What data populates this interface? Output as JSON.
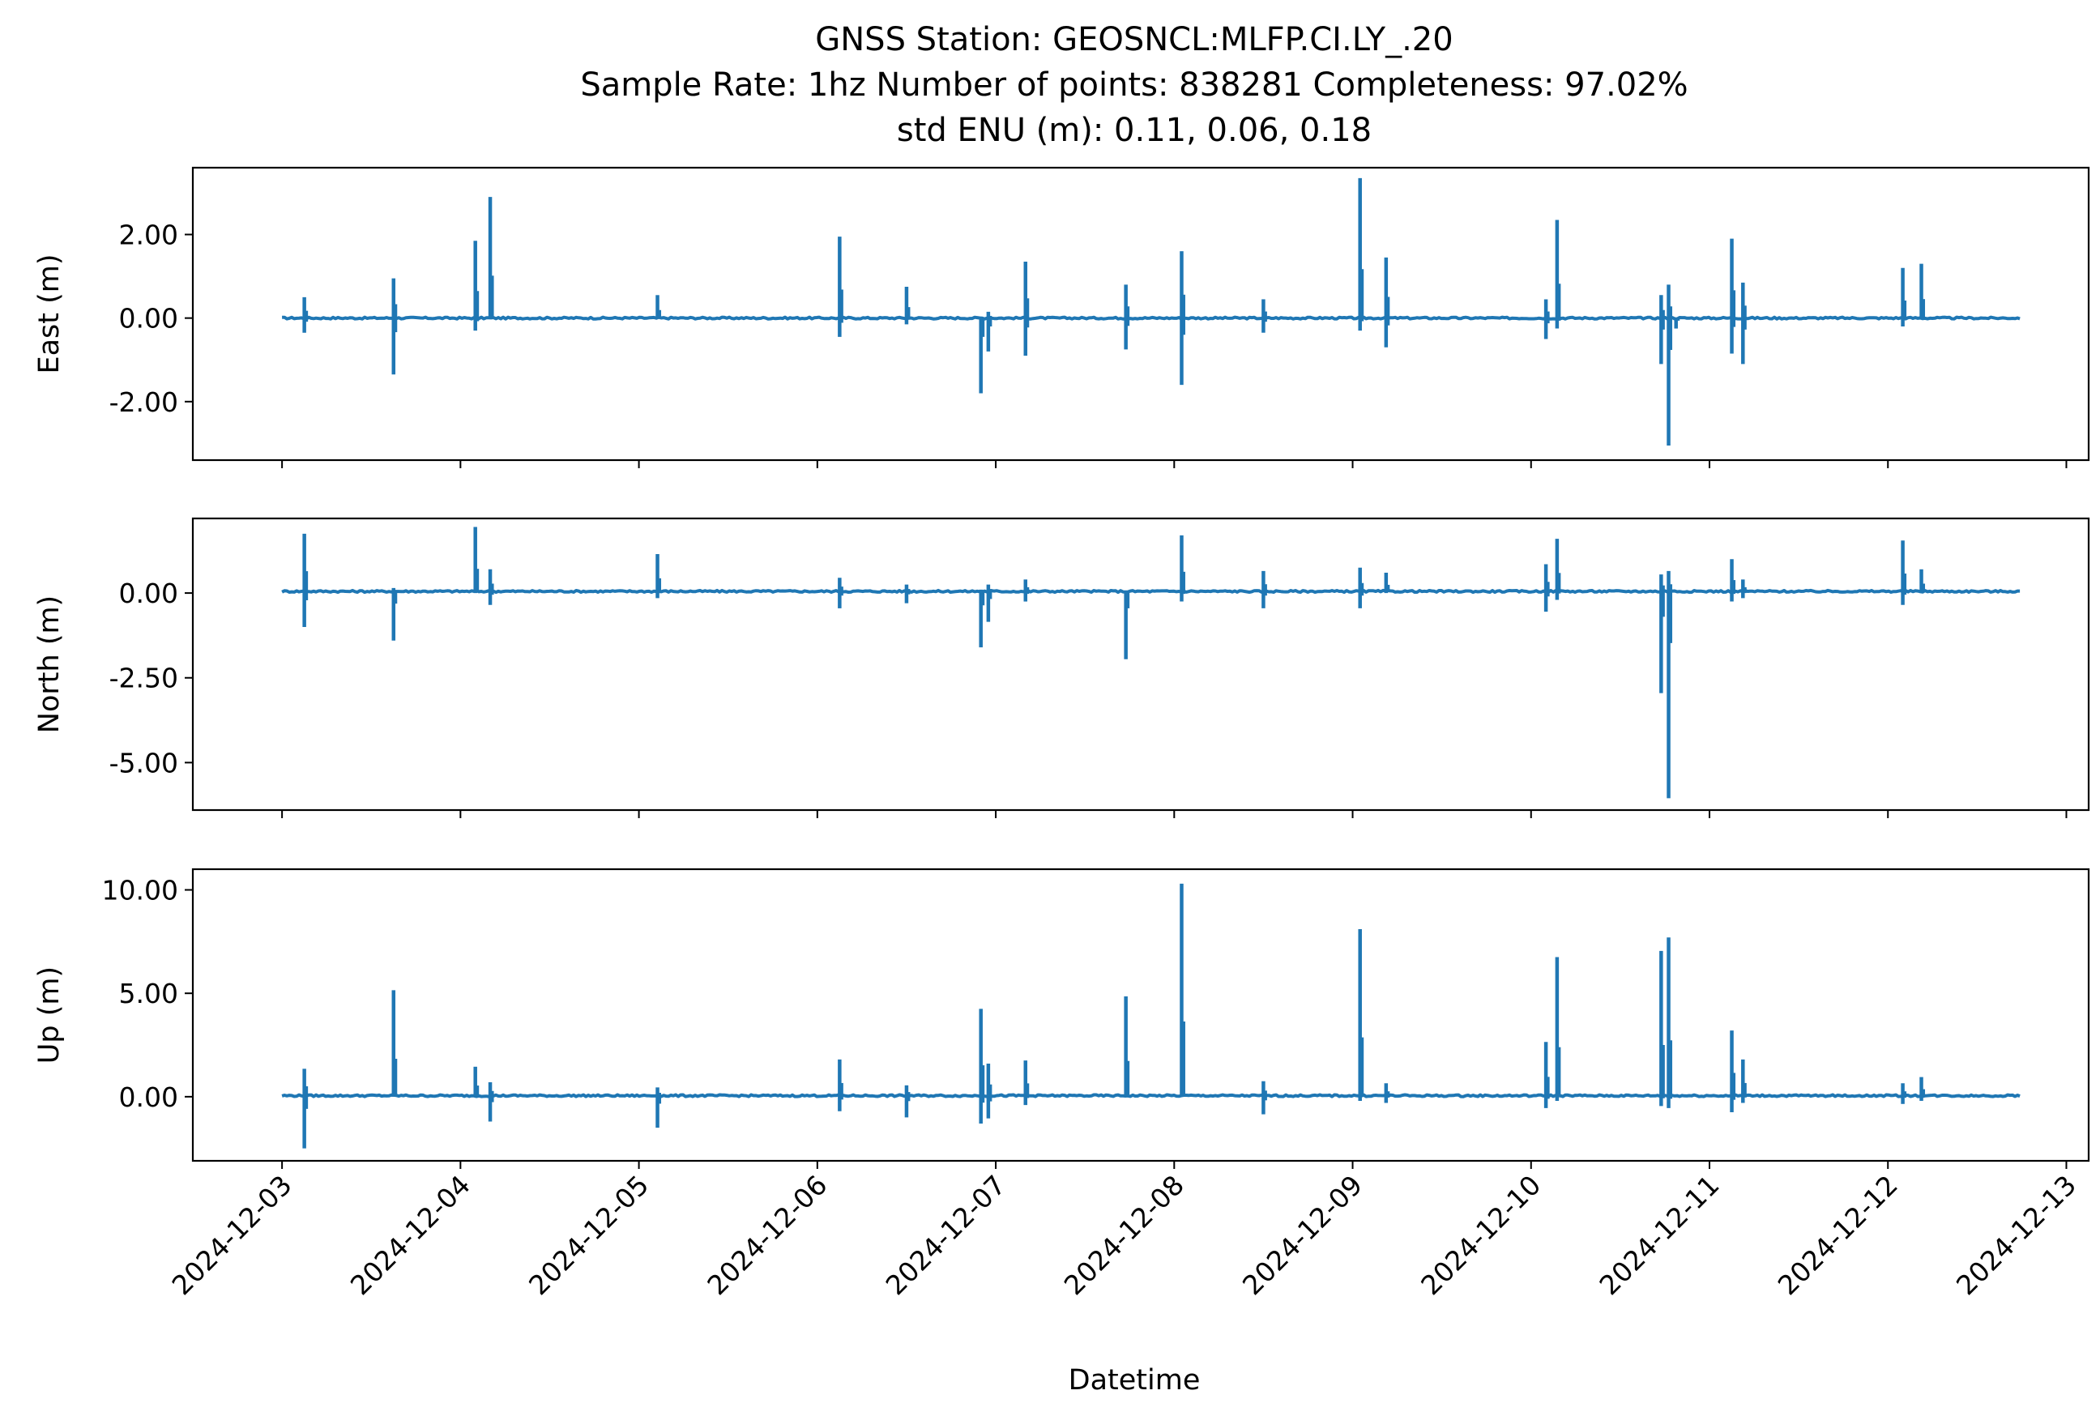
{
  "figure": {
    "title_lines": [
      "GNSS Station: GEOSNCL:MLFP.CI.LY_.20",
      "Sample Rate: 1hz   Number of points: 838281    Completeness:  97.02%",
      "std ENU (m):  0.11, 0.06, 0.18"
    ],
    "xlabel": "Datetime"
  },
  "chart_data": {
    "type": "line",
    "title": "GNSS Station: GEOSNCL:MLFP.CI.LY_.20\nSample Rate: 1hz   Number of points: 838281    Completeness:  97.02%\nstd ENU (m):  0.11, 0.06, 0.18",
    "xlabel": "Datetime",
    "x_ticks": [
      "2024-12-03",
      "2024-12-04",
      "2024-12-05",
      "2024-12-06",
      "2024-12-07",
      "2024-12-08",
      "2024-12-09",
      "2024-12-10",
      "2024-12-11",
      "2024-12-12",
      "2024-12-13"
    ],
    "xlim": [
      "2024-12-02T12:00",
      "2024-12-13T03:00"
    ],
    "data_range": [
      "2024-12-03T00:00",
      "2024-12-12T17:45"
    ],
    "line_color": "#1f77b4",
    "grid": false,
    "shared_x": true,
    "panels": [
      {
        "ylabel": "East (m)",
        "ylim": [
          -3.4,
          3.6
        ],
        "yticks": [
          2.0,
          0.0,
          -2.0
        ],
        "ytick_labels": [
          "2.00",
          "0.00",
          "-2.00"
        ],
        "baseline": 0.0,
        "spikes": [
          {
            "t": "2024-12-03T03:00",
            "hi": 0.5,
            "lo": -0.35
          },
          {
            "t": "2024-12-03T15:00",
            "hi": 0.95,
            "lo": -1.35
          },
          {
            "t": "2024-12-04T02:00",
            "hi": 1.85,
            "lo": -0.3
          },
          {
            "t": "2024-12-04T04:00",
            "hi": 2.9,
            "lo": 0.0
          },
          {
            "t": "2024-12-05T02:30",
            "hi": 0.55,
            "lo": 0.0
          },
          {
            "t": "2024-12-06T03:00",
            "hi": 1.95,
            "lo": -0.45
          },
          {
            "t": "2024-12-06T12:00",
            "hi": 0.75,
            "lo": -0.15
          },
          {
            "t": "2024-12-06T22:00",
            "hi": 0.0,
            "lo": -1.8
          },
          {
            "t": "2024-12-06T23:00",
            "hi": 0.15,
            "lo": -0.8
          },
          {
            "t": "2024-12-07T04:00",
            "hi": 1.35,
            "lo": -0.9
          },
          {
            "t": "2024-12-07T17:30",
            "hi": 0.8,
            "lo": -0.75
          },
          {
            "t": "2024-12-08T01:00",
            "hi": 1.6,
            "lo": -1.6
          },
          {
            "t": "2024-12-08T12:00",
            "hi": 0.45,
            "lo": -0.35
          },
          {
            "t": "2024-12-09T01:00",
            "hi": 3.35,
            "lo": -0.3
          },
          {
            "t": "2024-12-09T04:30",
            "hi": 1.45,
            "lo": -0.7
          },
          {
            "t": "2024-12-10T02:00",
            "hi": 0.45,
            "lo": -0.5
          },
          {
            "t": "2024-12-10T03:30",
            "hi": 2.35,
            "lo": -0.25
          },
          {
            "t": "2024-12-10T17:30",
            "hi": 0.55,
            "lo": -1.1
          },
          {
            "t": "2024-12-10T18:30",
            "hi": 0.8,
            "lo": -3.05
          },
          {
            "t": "2024-12-10T19:30",
            "hi": 0.0,
            "lo": -0.25
          },
          {
            "t": "2024-12-11T03:00",
            "hi": 1.9,
            "lo": -0.85
          },
          {
            "t": "2024-12-11T04:30",
            "hi": 0.85,
            "lo": -1.1
          },
          {
            "t": "2024-12-12T02:00",
            "hi": 1.2,
            "lo": -0.2
          },
          {
            "t": "2024-12-12T04:30",
            "hi": 1.3,
            "lo": 0.0
          }
        ]
      },
      {
        "ylabel": "North (m)",
        "ylim": [
          -6.4,
          2.2
        ],
        "yticks": [
          0.0,
          -2.5,
          -5.0
        ],
        "ytick_labels": [
          "0.00",
          "-2.50",
          "-5.00"
        ],
        "baseline": 0.05,
        "spikes": [
          {
            "t": "2024-12-03T03:00",
            "hi": 1.75,
            "lo": -1.0
          },
          {
            "t": "2024-12-03T15:00",
            "hi": 0.15,
            "lo": -1.4
          },
          {
            "t": "2024-12-04T02:00",
            "hi": 1.95,
            "lo": 0.0
          },
          {
            "t": "2024-12-04T04:00",
            "hi": 0.7,
            "lo": -0.35
          },
          {
            "t": "2024-12-05T02:30",
            "hi": 1.15,
            "lo": -0.15
          },
          {
            "t": "2024-12-06T03:00",
            "hi": 0.45,
            "lo": -0.45
          },
          {
            "t": "2024-12-06T12:00",
            "hi": 0.25,
            "lo": -0.3
          },
          {
            "t": "2024-12-06T22:00",
            "hi": 0.1,
            "lo": -1.6
          },
          {
            "t": "2024-12-06T23:00",
            "hi": 0.25,
            "lo": -0.85
          },
          {
            "t": "2024-12-07T04:00",
            "hi": 0.4,
            "lo": -0.25
          },
          {
            "t": "2024-12-07T17:30",
            "hi": 0.0,
            "lo": -1.95
          },
          {
            "t": "2024-12-08T01:00",
            "hi": 1.7,
            "lo": -0.25
          },
          {
            "t": "2024-12-08T12:00",
            "hi": 0.65,
            "lo": -0.45
          },
          {
            "t": "2024-12-09T01:00",
            "hi": 0.75,
            "lo": -0.45
          },
          {
            "t": "2024-12-09T04:30",
            "hi": 0.6,
            "lo": 0.0
          },
          {
            "t": "2024-12-10T02:00",
            "hi": 0.85,
            "lo": -0.55
          },
          {
            "t": "2024-12-10T03:30",
            "hi": 1.6,
            "lo": -0.2
          },
          {
            "t": "2024-12-10T17:30",
            "hi": 0.55,
            "lo": -2.95
          },
          {
            "t": "2024-12-10T18:30",
            "hi": 0.65,
            "lo": -6.05
          },
          {
            "t": "2024-12-11T03:00",
            "hi": 1.0,
            "lo": -0.25
          },
          {
            "t": "2024-12-11T04:30",
            "hi": 0.4,
            "lo": -0.15
          },
          {
            "t": "2024-12-12T02:00",
            "hi": 1.55,
            "lo": -0.35
          },
          {
            "t": "2024-12-12T04:30",
            "hi": 0.7,
            "lo": 0.0
          }
        ]
      },
      {
        "ylabel": "Up (m)",
        "ylim": [
          -3.1,
          11.0
        ],
        "yticks": [
          10.0,
          5.0,
          0.0
        ],
        "ytick_labels": [
          "10.00",
          "5.00",
          "0.00"
        ],
        "baseline": 0.05,
        "spikes": [
          {
            "t": "2024-12-03T03:00",
            "hi": 1.35,
            "lo": -2.5
          },
          {
            "t": "2024-12-03T15:00",
            "hi": 5.15,
            "lo": 0.0
          },
          {
            "t": "2024-12-04T02:00",
            "hi": 1.45,
            "lo": 0.0
          },
          {
            "t": "2024-12-04T04:00",
            "hi": 0.7,
            "lo": -1.2
          },
          {
            "t": "2024-12-05T02:30",
            "hi": 0.45,
            "lo": -1.5
          },
          {
            "t": "2024-12-06T03:00",
            "hi": 1.8,
            "lo": -0.7
          },
          {
            "t": "2024-12-06T12:00",
            "hi": 0.55,
            "lo": -1.0
          },
          {
            "t": "2024-12-06T22:00",
            "hi": 4.25,
            "lo": -1.3
          },
          {
            "t": "2024-12-06T23:00",
            "hi": 1.6,
            "lo": -1.05
          },
          {
            "t": "2024-12-07T04:00",
            "hi": 1.75,
            "lo": -0.4
          },
          {
            "t": "2024-12-07T17:30",
            "hi": 4.85,
            "lo": 0.0
          },
          {
            "t": "2024-12-08T01:00",
            "hi": 10.3,
            "lo": 0.0
          },
          {
            "t": "2024-12-08T12:00",
            "hi": 0.75,
            "lo": -0.85
          },
          {
            "t": "2024-12-09T01:00",
            "hi": 8.1,
            "lo": -0.2
          },
          {
            "t": "2024-12-09T04:30",
            "hi": 0.65,
            "lo": -0.3
          },
          {
            "t": "2024-12-10T02:00",
            "hi": 2.65,
            "lo": -0.55
          },
          {
            "t": "2024-12-10T03:30",
            "hi": 6.75,
            "lo": -0.2
          },
          {
            "t": "2024-12-10T17:30",
            "hi": 7.05,
            "lo": -0.45
          },
          {
            "t": "2024-12-10T18:30",
            "hi": 7.7,
            "lo": -0.55
          },
          {
            "t": "2024-12-11T03:00",
            "hi": 3.2,
            "lo": -0.75
          },
          {
            "t": "2024-12-11T04:30",
            "hi": 1.8,
            "lo": -0.3
          },
          {
            "t": "2024-12-12T02:00",
            "hi": 0.65,
            "lo": -0.35
          },
          {
            "t": "2024-12-12T04:30",
            "hi": 0.95,
            "lo": -0.2
          }
        ]
      }
    ]
  }
}
